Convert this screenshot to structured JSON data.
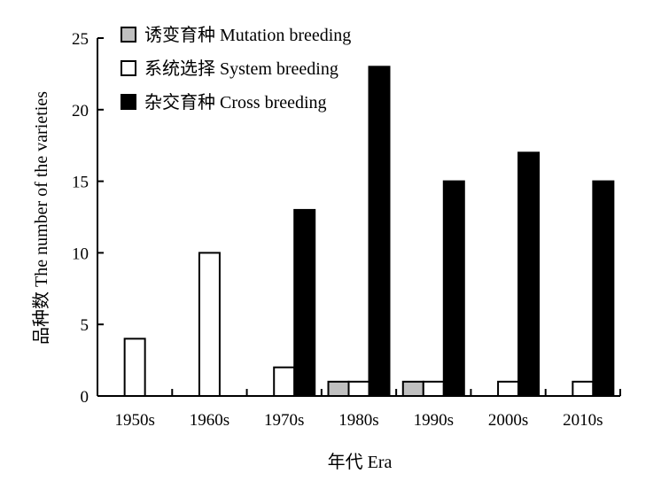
{
  "chart_data": {
    "type": "bar",
    "categories": [
      "1950s",
      "1960s",
      "1970s",
      "1980s",
      "1990s",
      "2000s",
      "2010s"
    ],
    "series": [
      {
        "name": "诱变育种 Mutation breeding",
        "values": [
          0,
          0,
          0,
          1,
          1,
          0,
          0
        ],
        "color": "#c0c0c0"
      },
      {
        "name": "系统选择 System breeding",
        "values": [
          4,
          10,
          2,
          1,
          1,
          1,
          1
        ],
        "color": "#ffffff"
      },
      {
        "name": "杂交育种 Cross breeding",
        "values": [
          0,
          0,
          13,
          23,
          15,
          17,
          15
        ],
        "color": "#000000"
      }
    ],
    "xlabel": "年代 Era",
    "ylabel": "品种数 The number of the varieties",
    "ylim": [
      0,
      25
    ],
    "yticks": [
      0,
      5,
      10,
      15,
      20,
      25
    ],
    "grid": false,
    "legend_position": "top-left"
  }
}
